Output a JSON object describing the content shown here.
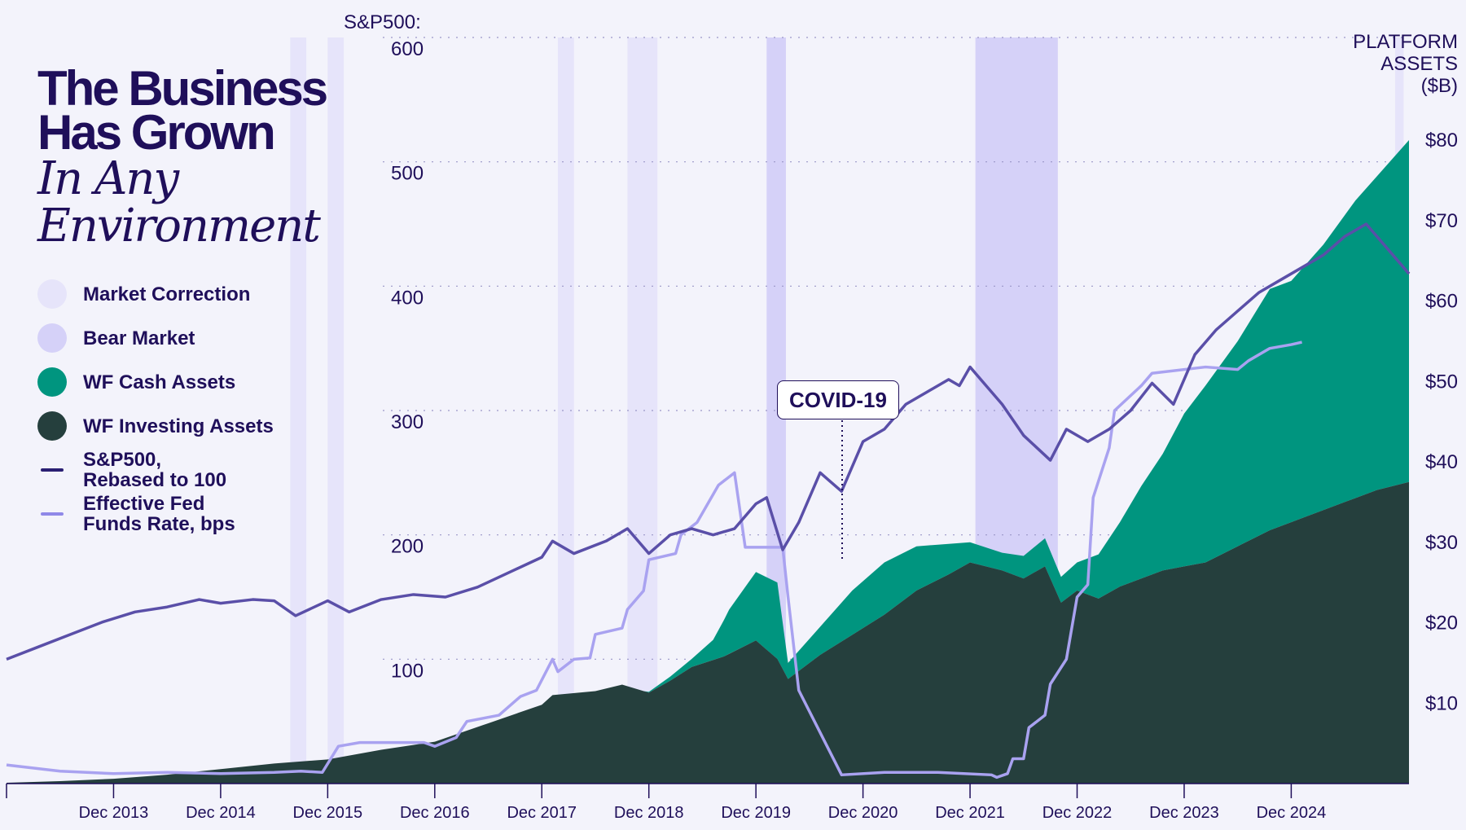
{
  "title": {
    "line1": "The Business",
    "line2": "Has Grown",
    "line3": "In Any",
    "line4": "Environment"
  },
  "legend": [
    {
      "label": "Market Correction",
      "color": "#e6e4fa",
      "kind": "swatch"
    },
    {
      "label": "Bear Market",
      "color": "#d5d1f8",
      "kind": "swatch"
    },
    {
      "label": "WF Cash Assets",
      "color": "#00957f",
      "kind": "swatch"
    },
    {
      "label": "WF Investing Assets",
      "color": "#253f3d",
      "kind": "swatch"
    },
    {
      "label": "S&P500,\nRebased to 100",
      "color": "#2a1f73",
      "kind": "line"
    },
    {
      "label": "Effective Fed\nFunds Rate, bps",
      "color": "#8f88e8",
      "kind": "line"
    }
  ],
  "annotation": "COVID-19",
  "chart_data": {
    "type": "area",
    "left_axis": {
      "title": "S&P500:",
      "ticks": [
        100,
        200,
        300,
        400,
        500,
        600
      ],
      "range": [
        0,
        600
      ]
    },
    "right_axis": {
      "title": "PLATFORM\nASSETS\n($B)",
      "tick_labels": [
        "$10",
        "$20",
        "$30",
        "$40",
        "$50",
        "$60",
        "$70",
        "$80"
      ],
      "ticks": [
        10,
        20,
        30,
        40,
        50,
        60,
        70,
        80
      ],
      "range": [
        0,
        80
      ]
    },
    "x_axis": {
      "range": [
        2012.0,
        2025.1
      ],
      "tick_labels": [
        "Dec 2013",
        "Dec 2014",
        "Dec 2015",
        "Dec 2016",
        "Dec 2017",
        "Dec 2018",
        "Dec 2019",
        "Dec 2020",
        "Dec 2021",
        "Dec 2022",
        "Dec 2023",
        "Dec 2024"
      ],
      "ticks": [
        2013.0,
        2014.0,
        2015.0,
        2016.0,
        2017.0,
        2018.0,
        2019.0,
        2020.0,
        2021.0,
        2022.0,
        2023.0,
        2024.0
      ]
    },
    "grid": "horizontal dotted",
    "market_corrections": [
      [
        2014.65,
        2014.8
      ],
      [
        2015.0,
        2015.15
      ],
      [
        2017.15,
        2017.3
      ],
      [
        2017.8,
        2018.08
      ],
      [
        2024.97,
        2025.05
      ]
    ],
    "bear_markets": [
      [
        2019.1,
        2019.28
      ],
      [
        2021.05,
        2021.82
      ]
    ],
    "series": [
      {
        "name": "WF Investing Assets",
        "color": "#253f3d",
        "axis": "right",
        "x": [
          2012.0,
          2012.5,
          2013.0,
          2013.5,
          2014.0,
          2014.5,
          2015.0,
          2015.5,
          2016.0,
          2016.5,
          2017.0,
          2017.1,
          2017.5,
          2017.75,
          2018.0,
          2018.2,
          2018.4,
          2018.7,
          2019.0,
          2019.2,
          2019.3,
          2019.6,
          2019.9,
          2020.2,
          2020.5,
          2020.8,
          2021.0,
          2021.3,
          2021.5,
          2021.7,
          2021.85,
          2022.0,
          2022.2,
          2022.4,
          2022.6,
          2022.8,
          2023.0,
          2023.2,
          2023.5,
          2023.8,
          2024.0,
          2024.3,
          2024.6,
          2024.8,
          2025.1
        ],
        "values": [
          0.1,
          0.3,
          0.6,
          1.1,
          1.8,
          2.5,
          3.0,
          4.2,
          5.2,
          7.5,
          9.8,
          11.0,
          11.5,
          12.3,
          11.3,
          12.8,
          14.5,
          15.8,
          17.8,
          15.5,
          13.0,
          16.0,
          18.5,
          21.0,
          24.0,
          26.0,
          27.5,
          26.5,
          25.5,
          27.0,
          22.5,
          24.0,
          23.0,
          24.5,
          25.5,
          26.5,
          27.0,
          27.5,
          29.5,
          31.5,
          32.5,
          34.0,
          35.5,
          36.5,
          37.5
        ]
      },
      {
        "name": "WF Cash Assets",
        "color": "#00957f",
        "axis": "right",
        "x": [
          2012.0,
          2017.95,
          2018.2,
          2018.4,
          2018.6,
          2018.75,
          2019.0,
          2019.2,
          2019.3,
          2019.6,
          2019.9,
          2020.2,
          2020.5,
          2020.8,
          2021.0,
          2021.3,
          2021.5,
          2021.7,
          2021.85,
          2022.0,
          2022.2,
          2022.4,
          2022.6,
          2022.8,
          2023.0,
          2023.2,
          2023.5,
          2023.8,
          2024.0,
          2024.3,
          2024.6,
          2024.8,
          2025.1
        ],
        "values": [
          0.0,
          0.0,
          0.5,
          1.0,
          2.5,
          5.5,
          8.5,
          9.5,
          2.0,
          3.5,
          5.5,
          6.5,
          5.5,
          3.8,
          2.5,
          2.2,
          2.8,
          3.5,
          3.2,
          3.5,
          5.5,
          8.0,
          11.5,
          14.5,
          19.0,
          22.0,
          25.5,
          30.0,
          30.0,
          33.0,
          37.0,
          39.0,
          42.5
        ]
      },
      {
        "name": "S&P500, Rebased to 100",
        "color": "#5a4fa8",
        "axis": "left",
        "x": [
          2012.0,
          2012.3,
          2012.6,
          2012.9,
          2013.2,
          2013.5,
          2013.8,
          2014.0,
          2014.3,
          2014.5,
          2014.7,
          2015.0,
          2015.2,
          2015.5,
          2015.8,
          2016.1,
          2016.4,
          2016.7,
          2017.0,
          2017.1,
          2017.3,
          2017.6,
          2017.8,
          2018.0,
          2018.2,
          2018.4,
          2018.6,
          2018.8,
          2019.0,
          2019.1,
          2019.25,
          2019.4,
          2019.6,
          2019.8,
          2020.0,
          2020.2,
          2020.4,
          2020.6,
          2020.8,
          2020.9,
          2021.0,
          2021.15,
          2021.3,
          2021.5,
          2021.75,
          2021.9,
          2022.1,
          2022.3,
          2022.5,
          2022.7,
          2022.9,
          2023.1,
          2023.3,
          2023.5,
          2023.7,
          2023.9,
          2024.1,
          2024.3,
          2024.5,
          2024.7,
          2024.9,
          2025.1
        ],
        "values": [
          100,
          110,
          120,
          130,
          138,
          142,
          148,
          145,
          148,
          147,
          135,
          147,
          138,
          148,
          152,
          150,
          158,
          170,
          182,
          195,
          185,
          195,
          205,
          185,
          200,
          205,
          200,
          205,
          225,
          230,
          188,
          210,
          250,
          235,
          275,
          285,
          305,
          315,
          325,
          320,
          335,
          320,
          305,
          280,
          260,
          285,
          275,
          285,
          300,
          322,
          305,
          345,
          365,
          380,
          395,
          405,
          415,
          425,
          440,
          450,
          430,
          410
        ]
      },
      {
        "name": "Effective Fed Funds Rate, bps",
        "color": "#a9a2f0",
        "axis": "left",
        "x": [
          2012.0,
          2012.5,
          2013.0,
          2013.5,
          2014.0,
          2014.5,
          2014.75,
          2014.95,
          2015.1,
          2015.3,
          2015.5,
          2015.9,
          2016.0,
          2016.2,
          2016.3,
          2016.6,
          2016.8,
          2016.95,
          2017.1,
          2017.15,
          2017.3,
          2017.45,
          2017.5,
          2017.75,
          2017.8,
          2017.95,
          2018.0,
          2018.25,
          2018.3,
          2018.45,
          2018.65,
          2018.8,
          2018.9,
          2019.25,
          2019.3,
          2019.4,
          2019.8,
          2020.2,
          2020.7,
          2021.2,
          2021.25,
          2021.35,
          2021.4,
          2021.5,
          2021.55,
          2021.7,
          2021.75,
          2021.9,
          2022.0,
          2022.1,
          2022.15,
          2022.3,
          2022.35,
          2022.6,
          2022.7,
          2023.2,
          2023.5,
          2023.6,
          2023.8,
          2024.0,
          2024.1
        ],
        "values": [
          15,
          10,
          8,
          9,
          8,
          9,
          10,
          9,
          30,
          33,
          33,
          33,
          30,
          37,
          50,
          55,
          70,
          75,
          100,
          90,
          100,
          101,
          120,
          125,
          140,
          155,
          180,
          185,
          200,
          210,
          240,
          250,
          190,
          190,
          150,
          75,
          7,
          9,
          9,
          7,
          5,
          8,
          20,
          20,
          45,
          55,
          80,
          100,
          150,
          160,
          230,
          270,
          300,
          320,
          330,
          335,
          333,
          340,
          350,
          353,
          355
        ]
      }
    ]
  }
}
